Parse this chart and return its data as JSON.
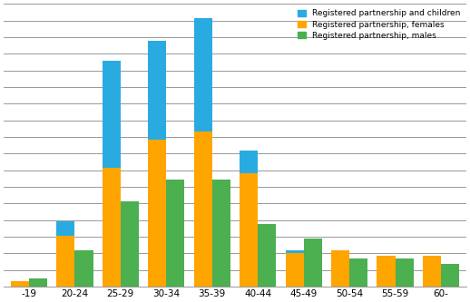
{
  "categories": [
    "-19",
    "20-24",
    "25-29",
    "30-34",
    "35-39",
    "40-44",
    "45-49",
    "50-54",
    "55-59",
    "60-"
  ],
  "males": [
    3,
    13,
    30,
    38,
    38,
    22,
    17,
    10,
    10,
    8
  ],
  "females": [
    2,
    18,
    42,
    52,
    55,
    40,
    12,
    13,
    11,
    11
  ],
  "partnership_children": [
    0,
    5,
    38,
    35,
    40,
    8,
    1,
    0,
    0,
    0
  ],
  "color_males": "#4CAF50",
  "color_females": "#FFA500",
  "color_children": "#29ABE2",
  "ylim": [
    0,
    100
  ],
  "n_gridlines": 17,
  "legend_labels": [
    "Registered partnership and children",
    "Registered partnership, females",
    "Registered partnership, males"
  ],
  "background_color": "#ffffff"
}
